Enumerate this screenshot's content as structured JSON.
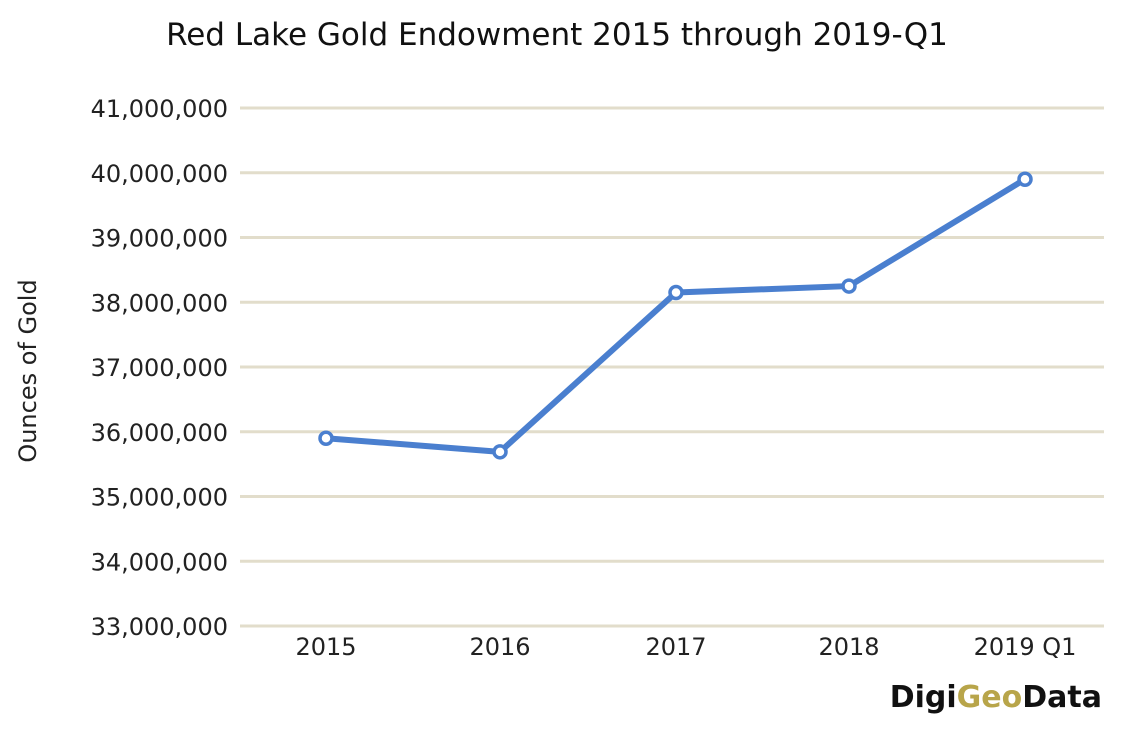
{
  "chart_data": {
    "type": "line",
    "title": "Red Lake Gold Endowment 2015 through 2019-Q1",
    "xlabel": "",
    "ylabel": "Ounces of Gold",
    "categories": [
      "2015",
      "2016",
      "2017",
      "2018",
      "2019 Q1"
    ],
    "series": [
      {
        "values": [
          35900000,
          35690000,
          38150000,
          38250000,
          39900000
        ],
        "color": "#4a7fcf"
      }
    ],
    "ylim": [
      33000000,
      41000000
    ],
    "yticks": [
      {
        "value": 33000000,
        "label": "33,000,000"
      },
      {
        "value": 34000000,
        "label": "34,000,000"
      },
      {
        "value": 35000000,
        "label": "35,000,000"
      },
      {
        "value": 36000000,
        "label": "36,000,000"
      },
      {
        "value": 37000000,
        "label": "37,000,000"
      },
      {
        "value": 38000000,
        "label": "38,000,000"
      },
      {
        "value": 39000000,
        "label": "39,000,000"
      },
      {
        "value": 40000000,
        "label": "40,000,000"
      },
      {
        "value": 41000000,
        "label": "41,000,000"
      }
    ],
    "grid": true,
    "legend": "none",
    "grid_color": "#e2ddcb"
  },
  "branding": {
    "part1": "Digi",
    "part2": "Geo",
    "part3": "Data",
    "part1_color": "#111111",
    "part2_color": "#b8a54a",
    "part3_color": "#111111"
  }
}
